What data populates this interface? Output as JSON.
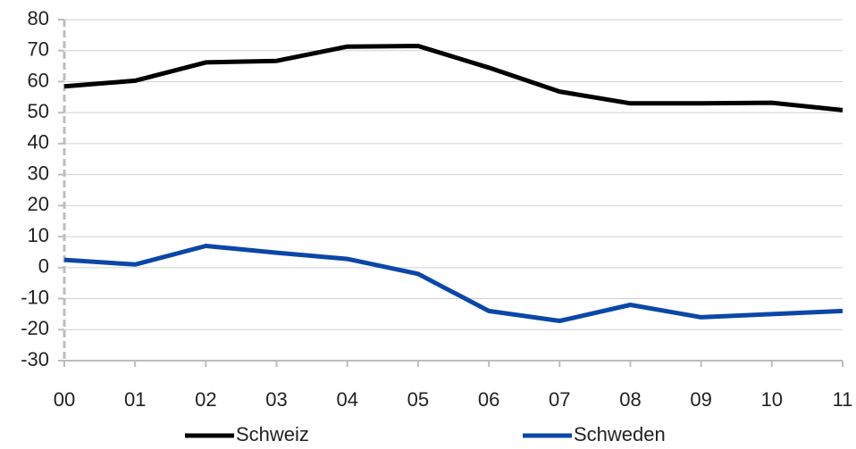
{
  "chart_data": {
    "type": "line",
    "categories": [
      "00",
      "01",
      "02",
      "03",
      "04",
      "05",
      "06",
      "07",
      "08",
      "09",
      "10",
      "11"
    ],
    "series": [
      {
        "name": "Schweiz",
        "color": "#000000",
        "values": [
          58.5,
          60.3,
          66.2,
          66.7,
          71.3,
          71.5,
          64.5,
          56.8,
          53.0,
          53.0,
          53.2,
          50.8
        ]
      },
      {
        "name": "Schweden",
        "color": "#0a47a8",
        "values": [
          2.5,
          1.0,
          7.0,
          4.8,
          2.8,
          -2.0,
          -14.0,
          -17.2,
          -12.0,
          -16.0,
          -15.0,
          -14.0
        ]
      }
    ],
    "ylim": [
      -30,
      80
    ],
    "yticks": [
      -30,
      -20,
      -10,
      0,
      10,
      20,
      30,
      40,
      50,
      60,
      70,
      80
    ],
    "grid": true,
    "legend": "bottom"
  }
}
